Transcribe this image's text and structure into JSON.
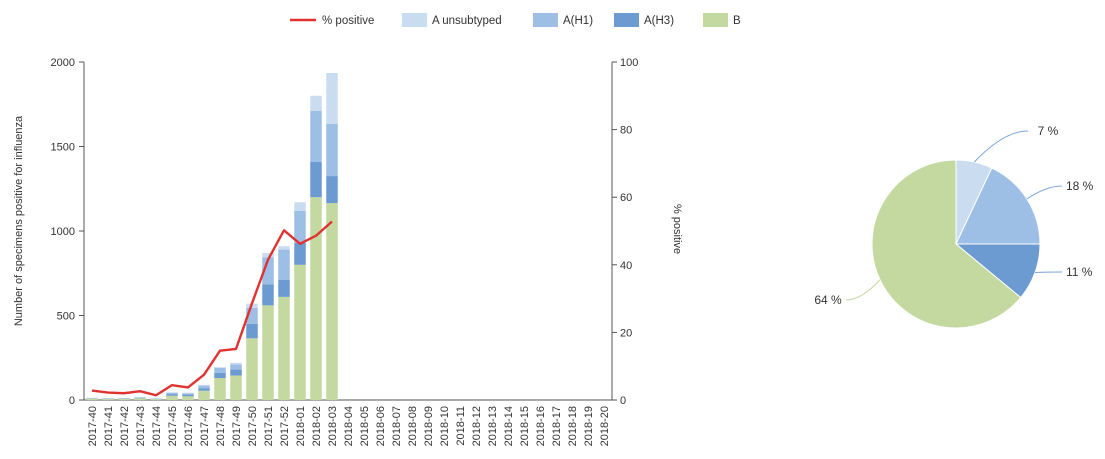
{
  "chart_data": [
    {
      "type": "bar",
      "stacked": true,
      "categories": [
        "2017-40",
        "2017-41",
        "2017-42",
        "2017-43",
        "2017-44",
        "2017-45",
        "2017-46",
        "2017-47",
        "2017-48",
        "2017-49",
        "2017-50",
        "2017-51",
        "2017-52",
        "2018-01",
        "2018-02",
        "2018-03",
        "2018-04",
        "2018-05",
        "2018-06",
        "2018-07",
        "2018-08",
        "2018-09",
        "2018-10",
        "2018-11",
        "2018-12",
        "2018-13",
        "2018-14",
        "2018-15",
        "2018-16",
        "2018-17",
        "2018-18",
        "2018-19",
        "2018-20"
      ],
      "series": [
        {
          "name": "B",
          "color": "#c4d9a0",
          "values": [
            8,
            6,
            7,
            10,
            5,
            25,
            22,
            55,
            130,
            145,
            365,
            560,
            610,
            800,
            1200,
            1165,
            null,
            null,
            null,
            null,
            null,
            null,
            null,
            null,
            null,
            null,
            null,
            null,
            null,
            null,
            null,
            null,
            null
          ]
        },
        {
          "name": "A(H3)",
          "color": "#6c9bd2",
          "values": [
            2,
            2,
            2,
            3,
            2,
            10,
            10,
            15,
            30,
            35,
            85,
            125,
            100,
            130,
            210,
            160,
            null,
            null,
            null,
            null,
            null,
            null,
            null,
            null,
            null,
            null,
            null,
            null,
            null,
            null,
            null,
            null,
            null
          ]
        },
        {
          "name": "A(H1)",
          "color": "#9dbfe6",
          "values": [
            2,
            2,
            2,
            3,
            2,
            8,
            8,
            15,
            30,
            30,
            95,
            160,
            180,
            190,
            300,
            310,
            null,
            null,
            null,
            null,
            null,
            null,
            null,
            null,
            null,
            null,
            null,
            null,
            null,
            null,
            null,
            null,
            null
          ]
        },
        {
          "name": "A unsubtyped",
          "color": "#c9dcf0",
          "values": [
            1,
            1,
            1,
            1,
            1,
            3,
            3,
            5,
            5,
            10,
            25,
            25,
            20,
            50,
            90,
            300,
            null,
            null,
            null,
            null,
            null,
            null,
            null,
            null,
            null,
            null,
            null,
            null,
            null,
            null,
            null,
            null,
            null
          ]
        }
      ],
      "line_series": {
        "name": "% positive",
        "color": "#e0332f",
        "values": [
          2.8,
          2.2,
          2,
          2.6,
          1.4,
          4.4,
          3.7,
          7.5,
          14.6,
          15.1,
          28.6,
          41.5,
          50.2,
          46.2,
          48.6,
          52.8,
          null,
          null,
          null,
          null,
          null,
          null,
          null,
          null,
          null,
          null,
          null,
          null,
          null,
          null,
          null,
          null,
          null
        ]
      },
      "ylabel": "Number of specimens positive for influenza",
      "y2label": "% positive",
      "ylim": [
        0,
        2000
      ],
      "y2lim": [
        0,
        100
      ],
      "yticks": [
        0,
        500,
        1000,
        1500,
        2000
      ],
      "y2ticks": [
        0,
        20,
        40,
        60,
        80,
        100
      ],
      "legend_position": "top",
      "grid": false
    },
    {
      "type": "pie",
      "slices": [
        {
          "name": "A unsubtyped",
          "value": 7,
          "label": "7 %",
          "color": "#c9dcf0"
        },
        {
          "name": "A(H1)",
          "value": 18,
          "label": "18 %",
          "color": "#9dbfe6"
        },
        {
          "name": "A(H3)",
          "value": 11,
          "label": "11 %",
          "color": "#6c9bd2"
        },
        {
          "name": "B",
          "value": 64,
          "label": "64 %",
          "color": "#c4d9a0"
        }
      ]
    }
  ],
  "legend": [
    {
      "label": "% positive",
      "kind": "line",
      "color": "#e0332f"
    },
    {
      "label": "A unsubtyped",
      "kind": "box",
      "color": "#c9dcf0"
    },
    {
      "label": "A(H1)",
      "kind": "box",
      "color": "#9dbfe6"
    },
    {
      "label": "A(H3)",
      "kind": "box",
      "color": "#6c9bd2"
    },
    {
      "label": "B",
      "kind": "box",
      "color": "#c4d9a0"
    }
  ]
}
